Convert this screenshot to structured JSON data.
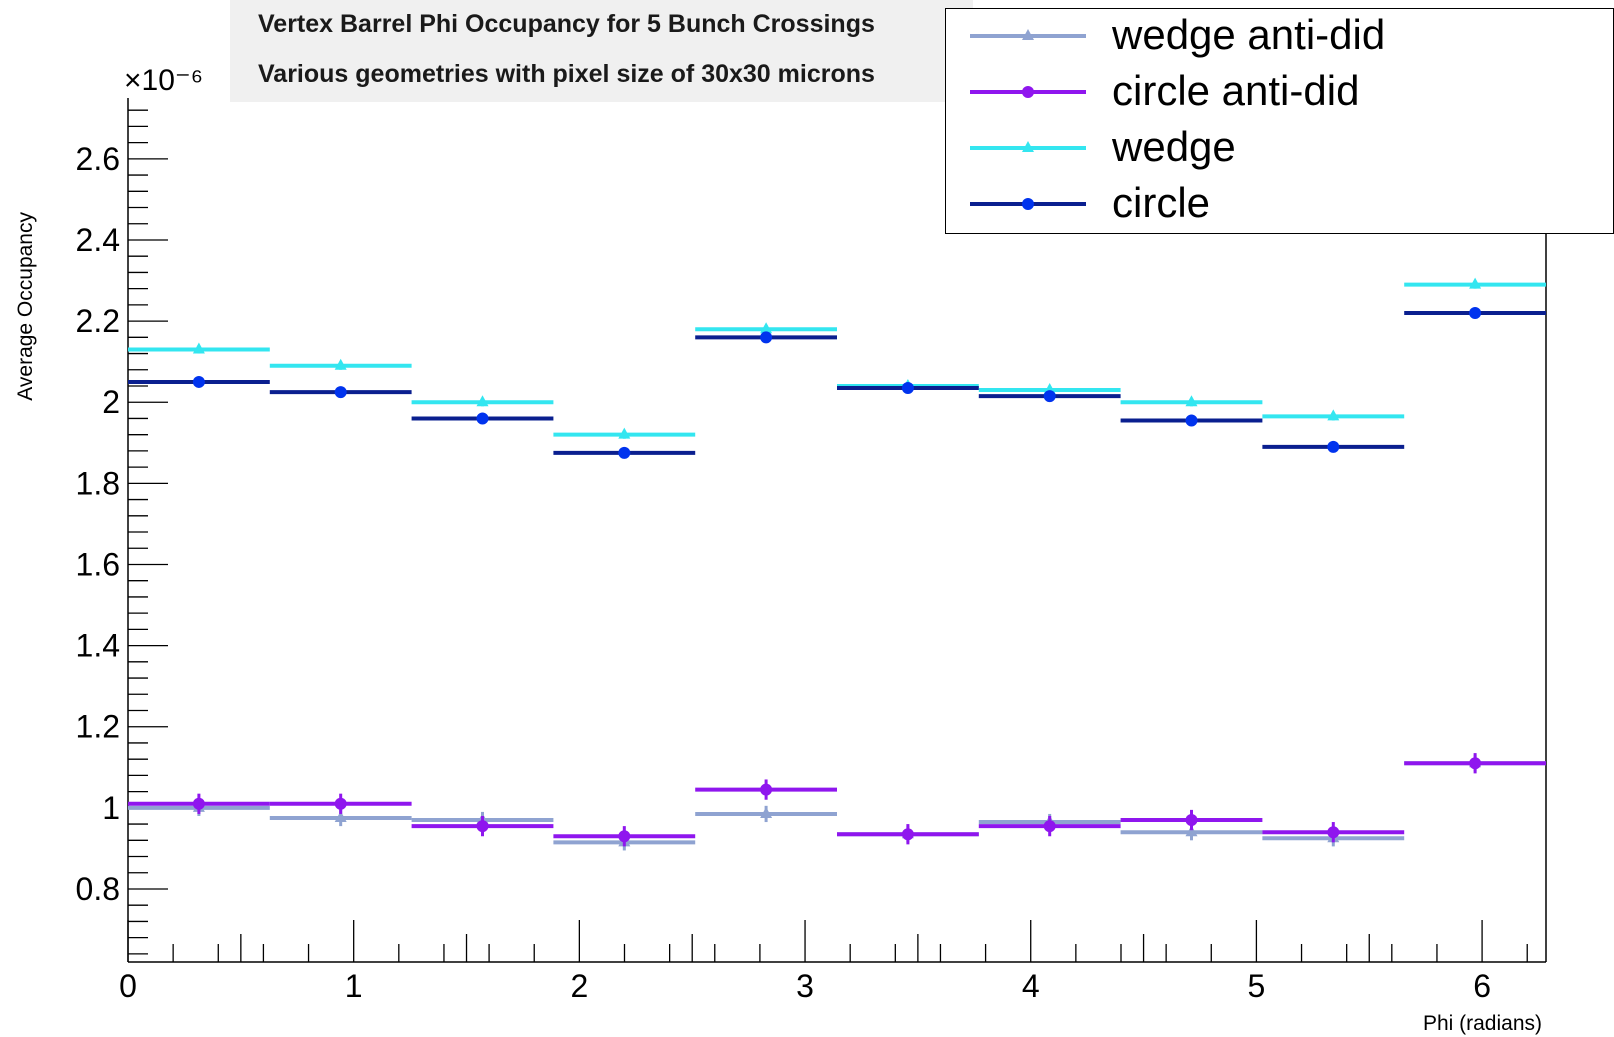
{
  "title": "Vertex Barrel Phi Occupancy for 5 Bunch Crossings",
  "subtitle": "Various geometries with pixel size of 30x30 microns",
  "colors": {
    "wedge_anti_did": "#8fa3d1",
    "circle_anti_did": "#8f16ee",
    "wedge": "#33e6f0",
    "circle_line": "#0a1f8f",
    "circle_marker": "#0033ee"
  },
  "chart_data": {
    "type": "line",
    "title": "Vertex Barrel Phi Occupancy for 5 Bunch Crossings",
    "subtitle": "Various geometries with pixel size of 30x30 microns",
    "xlabel": "Phi (radians)",
    "ylabel": "Average Occupancy",
    "y_multiplier": "×10⁻⁶",
    "xlim": [
      0,
      6.2832
    ],
    "ylim": [
      0.62,
      2.75
    ],
    "x_ticks": [
      "0",
      "1",
      "2",
      "3",
      "4",
      "5",
      "6"
    ],
    "y_ticks": [
      "0.8",
      "1",
      "1.2",
      "1.4",
      "1.6",
      "1.8",
      "2",
      "2.2",
      "2.4",
      "2.6"
    ],
    "bin_edges": [
      0,
      0.6283,
      1.2566,
      1.885,
      2.5133,
      3.1416,
      3.7699,
      4.3982,
      5.0265,
      5.6549,
      6.2832
    ],
    "legend_position": "top-right",
    "series": [
      {
        "name": "wedge anti-did",
        "marker": "triangle",
        "color": "#8fa3d1",
        "values": [
          1.0,
          0.975,
          0.97,
          0.915,
          0.985,
          0.935,
          0.965,
          0.94,
          0.925,
          1.11
        ],
        "errors": [
          0.02,
          0.02,
          0.02,
          0.02,
          0.02,
          0.02,
          0.02,
          0.02,
          0.02,
          0.02
        ]
      },
      {
        "name": "circle anti-did",
        "marker": "circle",
        "color": "#8f16ee",
        "values": [
          1.01,
          1.01,
          0.955,
          0.93,
          1.045,
          0.935,
          0.955,
          0.97,
          0.94,
          1.11
        ],
        "errors": [
          0.025,
          0.025,
          0.025,
          0.025,
          0.025,
          0.025,
          0.025,
          0.025,
          0.025,
          0.025
        ]
      },
      {
        "name": "wedge",
        "marker": "triangle",
        "color": "#33e6f0",
        "values": [
          2.13,
          2.09,
          2.0,
          1.92,
          2.18,
          2.04,
          2.03,
          2.0,
          1.965,
          2.29
        ],
        "errors": [
          0.01,
          0.01,
          0.01,
          0.01,
          0.01,
          0.01,
          0.01,
          0.01,
          0.01,
          0.01
        ]
      },
      {
        "name": "circle",
        "marker": "circle",
        "color": "#0a1f8f",
        "values": [
          2.05,
          2.025,
          1.96,
          1.875,
          2.16,
          2.035,
          2.015,
          1.955,
          1.89,
          2.22
        ],
        "errors": [
          0.01,
          0.01,
          0.01,
          0.01,
          0.01,
          0.01,
          0.01,
          0.01,
          0.01,
          0.01
        ]
      }
    ]
  }
}
